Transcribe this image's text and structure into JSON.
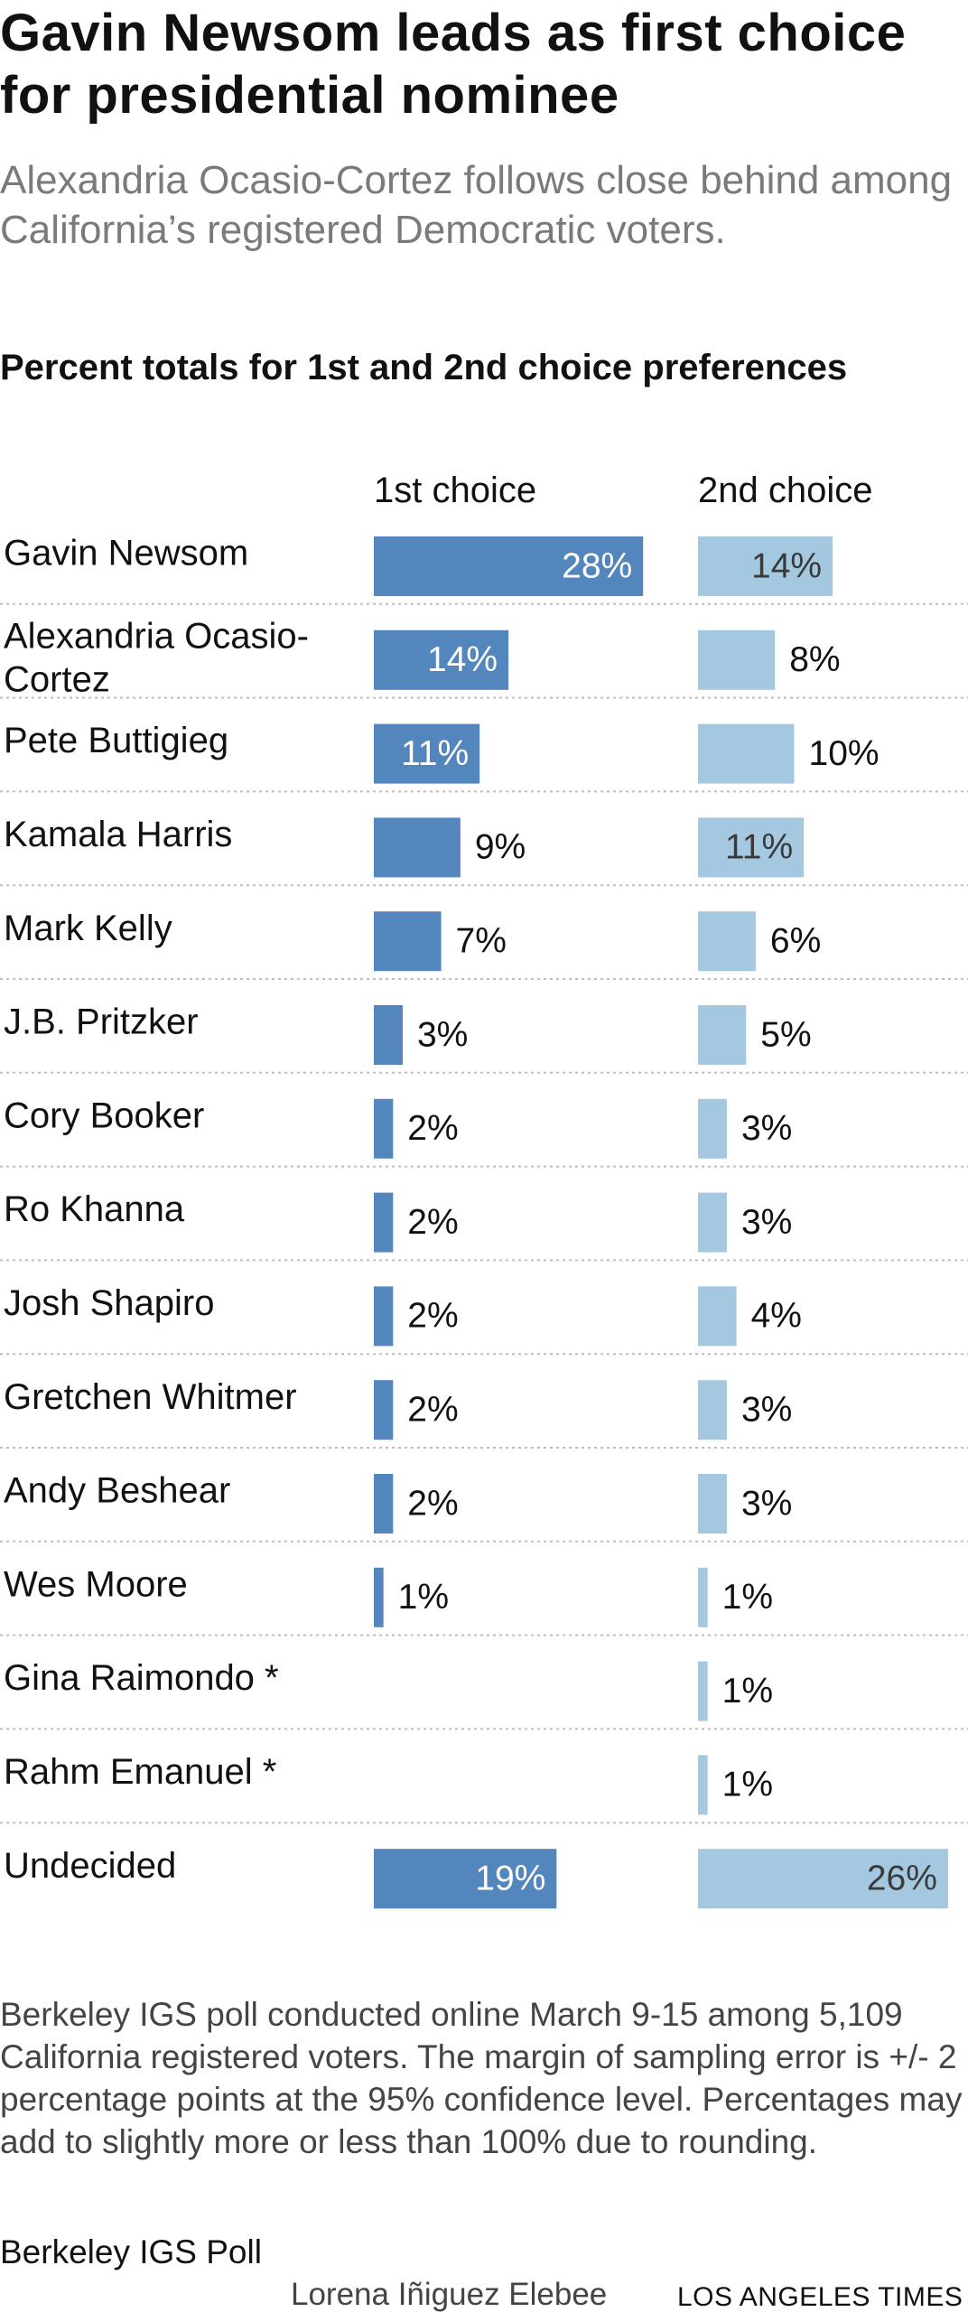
{
  "headline": "Gavin Newsom leads as first choice for presidential nominee",
  "subheadline": "Alexandria Ocasio-Cortez follows close behind among California’s registered Democratic voters.",
  "chart_data": {
    "type": "bar",
    "title": "Percent totals for 1st and 2nd choice preferences",
    "orientation": "horizontal",
    "value_suffix": "%",
    "categories": [
      [
        "Gavin Newsom"
      ],
      [
        "Alexandria Ocasio-",
        "Cortez"
      ],
      [
        "Pete Buttigieg"
      ],
      [
        "Kamala Harris"
      ],
      [
        "Mark Kelly"
      ],
      [
        "J.B. Pritzker"
      ],
      [
        "Cory Booker"
      ],
      [
        "Ro Khanna"
      ],
      [
        "Josh Shapiro"
      ],
      [
        "Gretchen Whitmer"
      ],
      [
        "Andy Beshear"
      ],
      [
        "Wes Moore"
      ],
      [
        "Gina Raimondo *"
      ],
      [
        "Rahm Emanuel *"
      ],
      [
        "Undecided"
      ]
    ],
    "series": [
      {
        "name": "1st choice",
        "color": "#5386bd",
        "values": [
          28,
          14,
          11,
          9,
          7,
          3,
          2,
          2,
          2,
          2,
          2,
          1,
          null,
          null,
          19
        ]
      },
      {
        "name": "2nd choice",
        "color": "#a5c8e1",
        "values": [
          14,
          8,
          10,
          11,
          6,
          5,
          3,
          3,
          4,
          3,
          3,
          1,
          1,
          1,
          26
        ]
      }
    ]
  },
  "footer": {
    "note": "Berkeley IGS poll conducted online March 9-15 among 5,109 California registered voters. The margin of sampling error is +/- 2 percentage points at the 95% confidence level. Percentages may add to slightly more or less than 100% due to rounding.",
    "source": "Berkeley IGS Poll",
    "credit": "Lorena Iñiguez Elebee",
    "publisher": "LOS ANGELES TIMES"
  }
}
